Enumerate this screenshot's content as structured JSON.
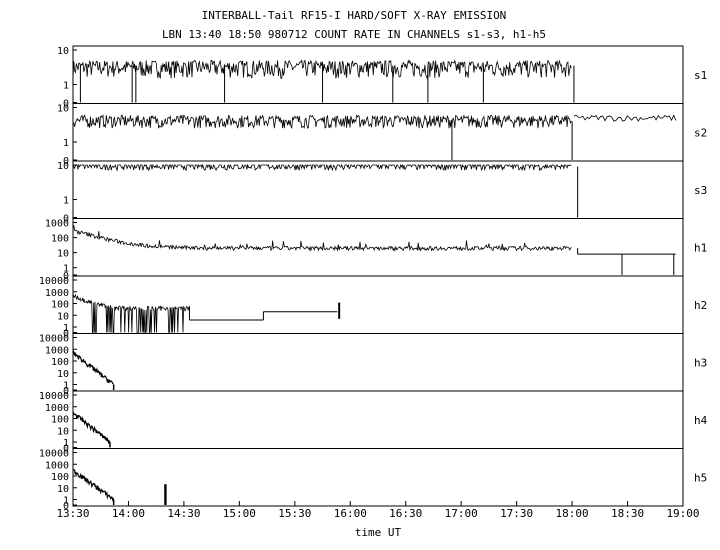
{
  "title_line1": "INTERBALL-Tail RF15-I HARD/SOFT X-RAY EMISSION",
  "title_line2": "LBN 13:40 18:50 980712  COUNT RATE IN CHANNELS s1-s3, h1-h5",
  "xlabel": "time UT",
  "chart_data": [
    {
      "type": "line",
      "channel": "s1",
      "ylim": [
        0,
        10
      ],
      "scale": "log",
      "ticks": [
        "10",
        "1",
        "0"
      ],
      "tick_values": [
        10,
        1,
        0
      ],
      "series": [
        {
          "name": "s1",
          "x": [
            "13:30",
            "18:00"
          ],
          "level": 3.5,
          "noise_low": 1.5,
          "noise_high": 5,
          "end": "18:01",
          "after": null,
          "dropouts": [
            "13:34",
            "14:02",
            "14:04",
            "14:52",
            "15:45",
            "16:23",
            "16:42",
            "17:12"
          ]
        }
      ]
    },
    {
      "type": "line",
      "channel": "s2",
      "ylim": [
        0,
        10
      ],
      "scale": "log",
      "ticks": [
        "10",
        "1",
        "0"
      ],
      "tick_values": [
        10,
        1,
        0
      ],
      "series": [
        {
          "name": "s2",
          "x": [
            "13:30",
            "18:00"
          ],
          "level": 4,
          "noise_low": 2.5,
          "noise_high": 6,
          "end": "18:00",
          "after": 5,
          "dropouts": [
            "16:55"
          ]
        }
      ]
    },
    {
      "type": "line",
      "channel": "s3",
      "ylim": [
        0,
        10
      ],
      "scale": "log",
      "ticks": [
        "10",
        "1",
        "0"
      ],
      "tick_values": [
        10,
        1,
        0
      ],
      "series": [
        {
          "name": "s3",
          "x": [
            "13:30",
            "18:00"
          ],
          "level": 9,
          "noise_low": 7,
          "noise_high": 12,
          "end": "18:03",
          "after": null,
          "dropouts": []
        }
      ]
    },
    {
      "type": "line",
      "channel": "h1",
      "ylim": [
        0,
        1000
      ],
      "scale": "log",
      "ticks": [
        "1000",
        "100",
        "10",
        "1",
        "0"
      ],
      "tick_values": [
        1000,
        100,
        10,
        1,
        0
      ],
      "series": [
        {
          "name": "h1",
          "x": [
            "13:30",
            "18:00"
          ],
          "start": 300,
          "level": 20,
          "end": "18:03",
          "after": 8,
          "dropouts": [
            "18:27",
            "18:55"
          ]
        }
      ]
    },
    {
      "type": "line",
      "channel": "h2",
      "ylim": [
        0,
        10000
      ],
      "scale": "log",
      "ticks": [
        "10000",
        "1000",
        "100",
        "10",
        "1",
        "0"
      ],
      "tick_values": [
        10000,
        1000,
        100,
        10,
        1,
        0
      ],
      "series": [
        {
          "name": "h2",
          "x": [
            "13:30",
            "14:33"
          ],
          "start": 500,
          "level": 40,
          "steps": [
            {
              "from": "14:33",
              "to": "15:13",
              "value": 4
            },
            {
              "from": "15:13",
              "to": "15:53",
              "value": 20
            }
          ],
          "spike": "15:54"
        }
      ]
    },
    {
      "type": "line",
      "channel": "h3",
      "ylim": [
        0,
        10000
      ],
      "scale": "log",
      "ticks": [
        "10000",
        "1000",
        "100",
        "10",
        "1",
        "0"
      ],
      "tick_values": [
        10000,
        1000,
        100,
        10,
        1,
        0
      ],
      "series": [
        {
          "name": "h3",
          "x": [
            "13:30",
            "13:52"
          ],
          "start": 500,
          "end_value": 1
        }
      ]
    },
    {
      "type": "line",
      "channel": "h4",
      "ylim": [
        0,
        10000
      ],
      "scale": "log",
      "ticks": [
        "10000",
        "1000",
        "100",
        "10",
        "1",
        "0"
      ],
      "tick_values": [
        10000,
        1000,
        100,
        10,
        1,
        0
      ],
      "series": [
        {
          "name": "h4",
          "x": [
            "13:30",
            "13:50"
          ],
          "start": 300,
          "end_value": 1
        }
      ]
    },
    {
      "type": "line",
      "channel": "h5",
      "ylim": [
        0,
        10000
      ],
      "scale": "log",
      "ticks": [
        "10000",
        "1000",
        "100",
        "10",
        "1",
        "0"
      ],
      "tick_values": [
        10000,
        1000,
        100,
        10,
        1,
        0
      ],
      "series": [
        {
          "name": "h5",
          "x": [
            "13:30",
            "13:52"
          ],
          "start": 300,
          "end_value": 1,
          "spike": "14:20"
        }
      ]
    }
  ],
  "xticks": [
    "13:30",
    "14:00",
    "14:30",
    "15:00",
    "15:30",
    "16:00",
    "16:30",
    "17:00",
    "17:30",
    "18:00",
    "18:30",
    "19:00"
  ],
  "xlim": [
    "13:30",
    "19:00"
  ]
}
